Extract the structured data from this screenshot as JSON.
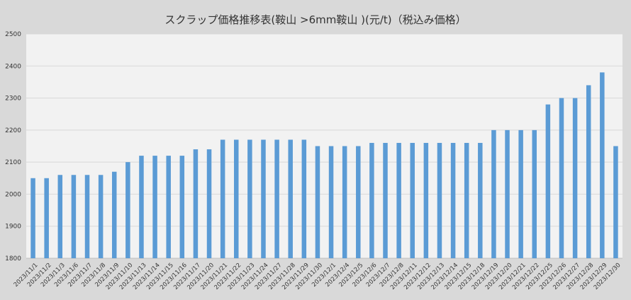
{
  "chart_data": {
    "type": "bar",
    "title": "スクラップ価格推移表(鞍山 >6mm鞍山 )(元/t)（税込み価格）",
    "xlabel": "",
    "ylabel": "",
    "ylim": [
      1800,
      2500
    ],
    "yticks": [
      1800,
      1900,
      2000,
      2100,
      2200,
      2300,
      2400,
      2500
    ],
    "grid": true,
    "legend": "none",
    "bar_color": "#5b9bd5",
    "categories": [
      "2023/11/1",
      "2023/11/2",
      "2023/11/3",
      "2023/11/6",
      "2023/11/7",
      "2023/11/8",
      "2023/11/9",
      "2023/11/10",
      "2023/11/13",
      "2023/11/14",
      "2023/11/15",
      "2023/11/16",
      "2023/11/17",
      "2023/11/20",
      "2023/11/21",
      "2023/11/22",
      "2023/11/23",
      "2023/11/24",
      "2023/11/27",
      "2023/11/28",
      "2023/11/29",
      "2023/11/30",
      "2023/12/1",
      "2023/12/4",
      "2023/12/5",
      "2023/12/6",
      "2023/12/7",
      "2023/12/8",
      "2023/12/11",
      "2023/12/12",
      "2023/12/13",
      "2023/12/14",
      "2023/12/15",
      "2023/12/18",
      "2023/12/19",
      "2023/12/20",
      "2023/12/21",
      "2023/12/22",
      "2023/12/25",
      "2023/12/26",
      "2023/12/27",
      "2023/12/28",
      "2023/12/29",
      "2023/12/30"
    ],
    "values": [
      2050,
      2050,
      2060,
      2060,
      2060,
      2060,
      2070,
      2100,
      2120,
      2120,
      2120,
      2120,
      2140,
      2140,
      2170,
      2170,
      2170,
      2170,
      2170,
      2170,
      2170,
      2150,
      2150,
      2150,
      2150,
      2160,
      2160,
      2160,
      2160,
      2160,
      2160,
      2160,
      2160,
      2160,
      2200,
      2200,
      2200,
      2200,
      2280,
      2300,
      2300,
      2340,
      2380,
      2150
    ]
  }
}
